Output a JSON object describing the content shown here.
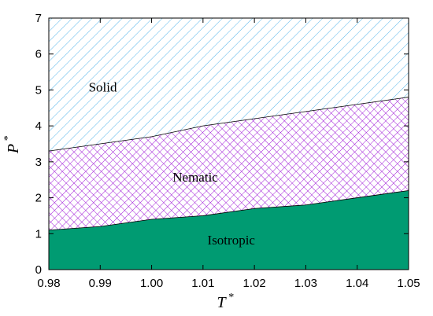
{
  "chart_data": {
    "type": "area",
    "xlabel": "T",
    "xlabel_superscript": "*",
    "ylabel": "P",
    "ylabel_superscript": "*",
    "xlim": [
      0.98,
      1.05
    ],
    "ylim": [
      0,
      7
    ],
    "xticks": [
      "0.98",
      "0.99",
      "1.00",
      "1.01",
      "1.02",
      "1.03",
      "1.04",
      "1.05"
    ],
    "yticks": [
      "0",
      "1",
      "2",
      "3",
      "4",
      "5",
      "6",
      "7"
    ],
    "grid": false,
    "boundaries": {
      "isotropic_nematic": {
        "x": [
          0.98,
          0.99,
          1.0,
          1.01,
          1.02,
          1.03,
          1.04,
          1.05
        ],
        "y": [
          1.1,
          1.2,
          1.4,
          1.5,
          1.7,
          1.8,
          2.0,
          2.2
        ]
      },
      "nematic_solid": {
        "x": [
          0.98,
          0.99,
          1.0,
          1.01,
          1.02,
          1.03,
          1.04,
          1.05
        ],
        "y": [
          3.3,
          3.5,
          3.7,
          4.0,
          4.2,
          4.4,
          4.6,
          4.8
        ]
      }
    },
    "regions": [
      {
        "name": "Isotropic",
        "label_at": [
          1.0155,
          0.7
        ],
        "color": "#009B72",
        "fill": "solid"
      },
      {
        "name": "Nematic",
        "label_at": [
          1.0085,
          2.45
        ],
        "color": "#9400D3",
        "fill": "crosshatch"
      },
      {
        "name": "Solid",
        "label_at": [
          0.9905,
          4.95
        ],
        "color": "#56B4E9",
        "fill": "diagonal-hatch"
      }
    ]
  }
}
